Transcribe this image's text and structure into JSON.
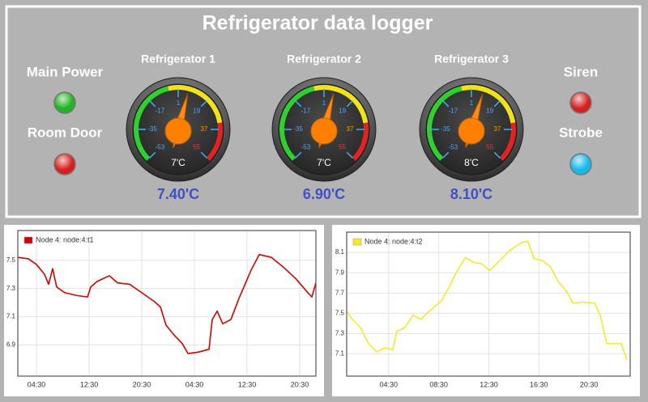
{
  "title": "Refrigerator data logger",
  "indicators": [
    {
      "label": "Main Power",
      "color": "#22b322"
    },
    {
      "label": "Room Door",
      "color": "#d61f1f"
    },
    {
      "label": "Siren",
      "color": "#d61f1f"
    },
    {
      "label": "Strobe",
      "color": "#16b8ea"
    }
  ],
  "gauges": [
    {
      "title": "Refrigerator 1",
      "range": [
        -53,
        55
      ],
      "ticks": [
        -53,
        -35,
        -17,
        1,
        19,
        37,
        55
      ],
      "needle": 7,
      "needle_label": "7'C",
      "reading": "7.40'C"
    },
    {
      "title": "Refrigerator 2",
      "range": [
        -53,
        55
      ],
      "ticks": [
        -53,
        -35,
        -17,
        1,
        19,
        37,
        55
      ],
      "needle": 7,
      "needle_label": "7'C",
      "reading": "6.90'C"
    },
    {
      "title": "Refrigerator 3",
      "range": [
        -53,
        55
      ],
      "ticks": [
        -53,
        -35,
        -17,
        1,
        19,
        37,
        55
      ],
      "needle": 8,
      "needle_label": "8'C",
      "reading": "8.10'C"
    }
  ],
  "chart_data": [
    {
      "type": "line",
      "x": [
        1.67,
        3.27,
        4.5,
        5.73,
        6.35,
        6.96,
        7.58,
        8.81,
        10.65,
        12.26,
        12.75,
        13.73,
        15.58,
        16.81,
        18.66,
        20.5,
        22.35,
        23.33,
        24.2,
        25.43,
        26.66,
        27.52,
        29.12,
        30.72,
        31.21,
        31.95,
        32.81,
        34.04,
        35.27,
        37.12,
        38.35,
        40.2,
        42.04,
        43.89,
        45.74,
        46.35,
        46.96
      ],
      "series": [
        {
          "name": "Node 4: node:4:t1",
          "color": "#d40000",
          "values": [
            7.52,
            7.51,
            7.47,
            7.4,
            7.33,
            7.44,
            7.31,
            7.27,
            7.25,
            7.24,
            7.31,
            7.35,
            7.39,
            7.34,
            7.33,
            7.27,
            7.21,
            7.17,
            7.04,
            6.97,
            6.91,
            6.84,
            6.85,
            6.87,
            7.08,
            7.14,
            7.05,
            7.08,
            7.23,
            7.43,
            7.54,
            7.52,
            7.45,
            7.37,
            7.27,
            7.24,
            7.34
          ]
        }
      ],
      "xlim": [
        1.67,
        46.96
      ],
      "xticks": [
        {
          "value": 4.5,
          "label": "04:30"
        },
        {
          "value": 12.5,
          "label": "12:30"
        },
        {
          "value": 20.5,
          "label": "20:30"
        },
        {
          "value": 28.5,
          "label": "04:30"
        },
        {
          "value": 36.5,
          "label": "12:30"
        },
        {
          "value": 44.5,
          "label": "20:30"
        }
      ],
      "ylim": [
        6.68,
        7.71
      ],
      "yticks": [
        6.9,
        7.1,
        7.3,
        7.5
      ],
      "grid": true
    },
    {
      "type": "line",
      "x": [
        1.15,
        1.6,
        2.25,
        2.89,
        3.54,
        4.18,
        4.83,
        5.15,
        5.8,
        6.44,
        7.09,
        7.73,
        8.7,
        9.34,
        9.99,
        10.63,
        11.28,
        11.92,
        12.57,
        13.21,
        14.18,
        15.15,
        15.6,
        16.12,
        16.76,
        17.41,
        18.05,
        18.7,
        19.21,
        19.98,
        20.95,
        21.4,
        21.92,
        22.44,
        23.08,
        23.53
      ],
      "series": [
        {
          "name": "Node 4: node:4:t2",
          "color": "#f2ea2a",
          "values": [
            7.52,
            7.44,
            7.36,
            7.2,
            7.12,
            7.16,
            7.14,
            7.32,
            7.36,
            7.48,
            7.44,
            7.52,
            7.62,
            7.76,
            7.92,
            8.05,
            8.0,
            7.99,
            7.92,
            8.0,
            8.12,
            8.2,
            8.21,
            8.04,
            8.02,
            7.96,
            7.81,
            7.72,
            7.6,
            7.61,
            7.6,
            7.48,
            7.2,
            7.2,
            7.2,
            7.04
          ]
        }
      ],
      "xlim": [
        1.15,
        23.79
      ],
      "xticks": [
        {
          "value": 4.5,
          "label": "04:30"
        },
        {
          "value": 8.5,
          "label": "08:30"
        },
        {
          "value": 12.5,
          "label": "12:30"
        },
        {
          "value": 16.5,
          "label": "16:30"
        },
        {
          "value": 20.5,
          "label": "20:30"
        }
      ],
      "ylim": [
        6.88,
        8.3
      ],
      "yticks": [
        7.1,
        7.3,
        7.5,
        7.7,
        7.9,
        8.1
      ],
      "grid": true
    }
  ]
}
